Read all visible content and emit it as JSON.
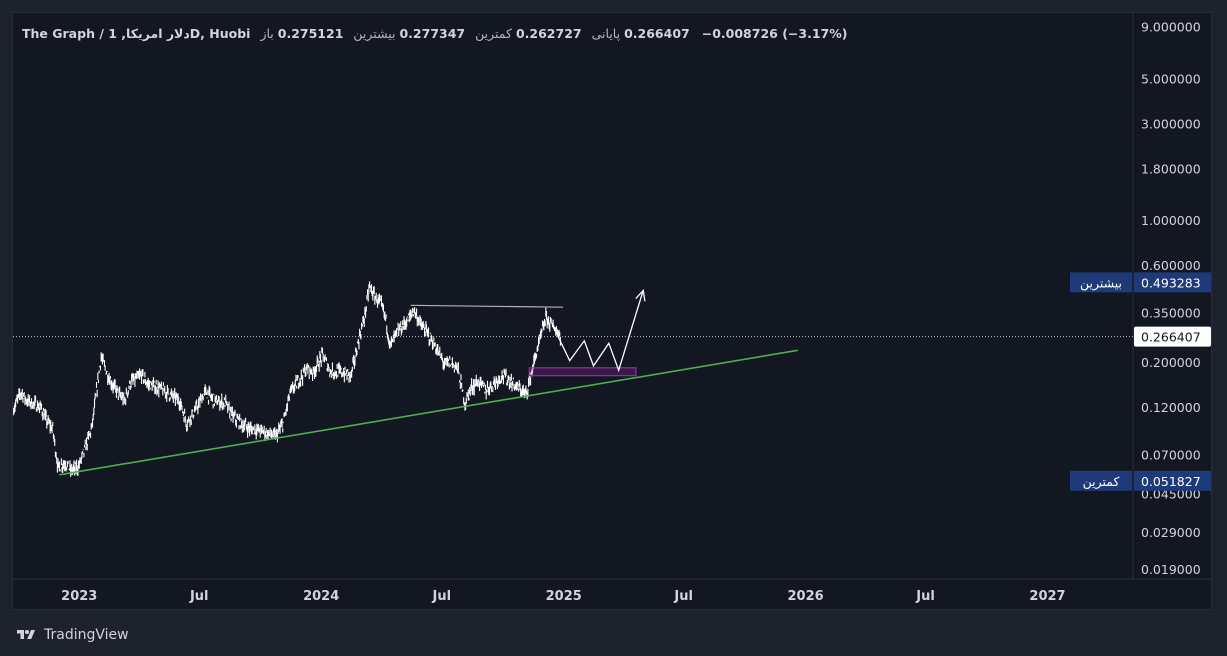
{
  "legend": {
    "symbol": "The Graph / دلار امریکا, 1D, Huobi",
    "open_label": "باز",
    "open": "0.275121",
    "high_label": "بیشترین",
    "high": "0.277347",
    "low_label": "کمترین",
    "low": "0.262727",
    "close_label": "پایانی",
    "close": "0.266407",
    "change": "−0.008726 (−3.17%)"
  },
  "price_tags": {
    "current": "0.266407",
    "high_label": "بیشترین",
    "high_value": "0.493283",
    "low_label": "کمترین",
    "low_value": "0.051827"
  },
  "brand": {
    "name": "TradingView"
  },
  "colors": {
    "background": "#131722",
    "candles": "#ffffff",
    "support_line": "#4caf50",
    "resistance_line": "#b2b5be",
    "demand_zone": "#9c27b0",
    "projection": "#ffffff",
    "tag_bg": "#1e3a78"
  },
  "chart_data": {
    "type": "line",
    "scale": "log",
    "grid": false,
    "y_ticks": [
      "9.000000",
      "5.000000",
      "3.000000",
      "1.800000",
      "1.000000",
      "0.600000",
      "0.350000",
      "0.200000",
      "0.120000",
      "0.070000",
      "0.045000",
      "0.029000",
      "0.019000"
    ],
    "y_tick_values": [
      9.0,
      5.0,
      3.0,
      1.8,
      1.0,
      0.6,
      0.35,
      0.2,
      0.12,
      0.07,
      0.045,
      0.029,
      0.019
    ],
    "x_ticks": [
      "2023",
      "Jul",
      "2024",
      "Jul",
      "2025",
      "Jul",
      "2026",
      "Jul",
      "2027"
    ],
    "x_tick_dates": [
      "2023-01-01",
      "2023-07-01",
      "2024-01-01",
      "2024-07-01",
      "2025-01-01",
      "2025-07-01",
      "2026-01-01",
      "2026-07-01",
      "2027-01-01"
    ],
    "ylim": [
      0.017,
      10.5
    ],
    "xlim": [
      "2022-09-23",
      "2027-05-10"
    ],
    "series": [
      {
        "values": [
          [
            "2022-09-24",
            0.118
          ],
          [
            "2022-10-05",
            0.142
          ],
          [
            "2022-10-15",
            0.128
          ],
          [
            "2022-10-25",
            0.124
          ],
          [
            "2022-11-05",
            0.118
          ],
          [
            "2022-11-12",
            0.104
          ],
          [
            "2022-11-22",
            0.093
          ],
          [
            "2022-11-30",
            0.06
          ],
          [
            "2022-12-10",
            0.064
          ],
          [
            "2022-12-20",
            0.058
          ],
          [
            "2022-12-31",
            0.061
          ],
          [
            "2023-01-10",
            0.075
          ],
          [
            "2023-01-20",
            0.095
          ],
          [
            "2023-02-03",
            0.212
          ],
          [
            "2023-02-10",
            0.182
          ],
          [
            "2023-02-20",
            0.155
          ],
          [
            "2023-03-01",
            0.14
          ],
          [
            "2023-03-10",
            0.128
          ],
          [
            "2023-03-20",
            0.16
          ],
          [
            "2023-04-05",
            0.172
          ],
          [
            "2023-04-15",
            0.155
          ],
          [
            "2023-04-30",
            0.15
          ],
          [
            "2023-05-15",
            0.14
          ],
          [
            "2023-06-01",
            0.13
          ],
          [
            "2023-06-12",
            0.1
          ],
          [
            "2023-06-25",
            0.115
          ],
          [
            "2023-07-10",
            0.142
          ],
          [
            "2023-07-25",
            0.128
          ],
          [
            "2023-08-10",
            0.125
          ],
          [
            "2023-08-18",
            0.11
          ],
          [
            "2023-09-01",
            0.1
          ],
          [
            "2023-09-15",
            0.094
          ],
          [
            "2023-10-01",
            0.092
          ],
          [
            "2023-10-15",
            0.088
          ],
          [
            "2023-10-25",
            0.086
          ],
          [
            "2023-11-05",
            0.1
          ],
          [
            "2023-11-15",
            0.14
          ],
          [
            "2023-11-30",
            0.165
          ],
          [
            "2023-12-10",
            0.185
          ],
          [
            "2023-12-20",
            0.178
          ],
          [
            "2024-01-03",
            0.215
          ],
          [
            "2024-01-15",
            0.18
          ],
          [
            "2024-02-01",
            0.178
          ],
          [
            "2024-02-15",
            0.17
          ],
          [
            "2024-02-26",
            0.25
          ],
          [
            "2024-03-06",
            0.33
          ],
          [
            "2024-03-14",
            0.47
          ],
          [
            "2024-03-22",
            0.42
          ],
          [
            "2024-04-01",
            0.38
          ],
          [
            "2024-04-08",
            0.32
          ],
          [
            "2024-04-14",
            0.24
          ],
          [
            "2024-04-25",
            0.28
          ],
          [
            "2024-05-10",
            0.32
          ],
          [
            "2024-05-20",
            0.36
          ],
          [
            "2024-06-01",
            0.3
          ],
          [
            "2024-06-15",
            0.26
          ],
          [
            "2024-06-25",
            0.225
          ],
          [
            "2024-07-05",
            0.195
          ],
          [
            "2024-07-15",
            0.2
          ],
          [
            "2024-07-25",
            0.185
          ],
          [
            "2024-08-05",
            0.125
          ],
          [
            "2024-08-15",
            0.15
          ],
          [
            "2024-08-25",
            0.16
          ],
          [
            "2024-09-06",
            0.145
          ],
          [
            "2024-09-20",
            0.16
          ],
          [
            "2024-10-01",
            0.172
          ],
          [
            "2024-10-15",
            0.158
          ],
          [
            "2024-10-25",
            0.148
          ],
          [
            "2024-11-05",
            0.138
          ],
          [
            "2024-11-12",
            0.17
          ],
          [
            "2024-11-22",
            0.23
          ],
          [
            "2024-12-05",
            0.33
          ],
          [
            "2024-12-12",
            0.31
          ],
          [
            "2024-12-22",
            0.285
          ],
          [
            "2024-12-28",
            0.266
          ]
        ]
      }
    ],
    "annotations": {
      "support_trendline": [
        [
          "2022-12-02",
          0.0555
        ],
        [
          "2025-12-20",
          0.228
        ]
      ],
      "resistance_line": [
        [
          "2024-05-15",
          0.38
        ],
        [
          "2024-12-31",
          0.372
        ]
      ],
      "demand_zone": {
        "x": [
          "2024-11-10",
          "2025-04-20"
        ],
        "y": [
          0.171,
          0.187
        ]
      },
      "projection_path": [
        [
          "2024-12-16",
          0.3
        ],
        [
          "2025-01-10",
          0.203
        ],
        [
          "2025-02-01",
          0.254
        ],
        [
          "2025-02-15",
          0.191
        ],
        [
          "2025-03-10",
          0.247
        ],
        [
          "2025-03-25",
          0.182
        ],
        [
          "2025-05-01",
          0.45
        ]
      ]
    }
  }
}
